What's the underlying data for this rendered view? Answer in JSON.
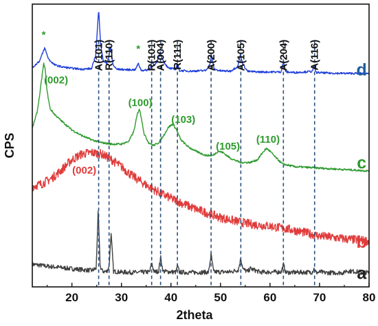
{
  "chart_data": {
    "type": "line",
    "title": "",
    "xlabel": "2theta",
    "ylabel": "CPS",
    "xlim": [
      12,
      80
    ],
    "ylim": [
      0,
      100
    ],
    "xticks": [
      20,
      30,
      40,
      50,
      60,
      70,
      80
    ],
    "grid": false,
    "legend": "none",
    "series": [
      {
        "name": "a",
        "color": "#404040",
        "noise": 0.8,
        "x": [
          12,
          15,
          18,
          20,
          22,
          24,
          24.9,
          25.3,
          25.7,
          26.2,
          27,
          27.5,
          27.9,
          28.4,
          30,
          33,
          35.7,
          36.1,
          36.6,
          37.5,
          37.9,
          38.4,
          41,
          41.3,
          41.7,
          44,
          47.6,
          48.1,
          48.6,
          52,
          53.6,
          54.1,
          54.6,
          55.5,
          56,
          58,
          62.3,
          62.7,
          63.2,
          68.5,
          68.9,
          69.3,
          70.3,
          70.8,
          75,
          75.3,
          80
        ],
        "y": [
          8,
          7.3,
          6.8,
          6.4,
          6.1,
          5.8,
          6.5,
          27,
          7.2,
          5.5,
          5.4,
          7,
          19,
          5.5,
          5.2,
          5.1,
          5.3,
          8.5,
          5.3,
          5.5,
          10.5,
          5.5,
          5.2,
          7.5,
          5.2,
          5.1,
          5.2,
          11.5,
          5.3,
          5.3,
          6,
          10,
          6.2,
          5.4,
          6.5,
          5.2,
          5.3,
          8,
          5.1,
          5.2,
          6.5,
          5,
          5.3,
          5,
          5,
          5.7,
          5
        ]
      },
      {
        "name": "b",
        "color": "#e03c3c",
        "noise": 1.6,
        "x": [
          12,
          14,
          16,
          18,
          20,
          22,
          24,
          26,
          28,
          30,
          32,
          35,
          38,
          41,
          45,
          50,
          55,
          57,
          60,
          65,
          70,
          75,
          80
        ],
        "y": [
          35.5,
          36.5,
          38.5,
          41.5,
          45,
          47,
          47.5,
          47,
          45,
          42.5,
          39.5,
          36,
          33,
          30.5,
          27.5,
          24.5,
          22.5,
          22,
          21.5,
          20,
          18,
          17,
          16.2
        ]
      },
      {
        "name": "c",
        "color": "#2e9a2e",
        "noise": 0.35,
        "x": [
          12,
          13,
          13.5,
          14,
          14.3,
          14.6,
          15,
          15.6,
          16.5,
          18,
          20,
          22,
          24,
          26,
          28,
          30,
          31.5,
          32.5,
          33.2,
          33.6,
          34,
          34.6,
          35.5,
          36.5,
          37.5,
          38.5,
          39.5,
          40.3,
          41,
          42,
          43.5,
          45,
          47,
          48.5,
          49.5,
          50.5,
          52,
          54,
          56,
          57.5,
          58.5,
          59.3,
          60,
          61,
          62.5,
          65,
          70,
          75,
          80
        ],
        "y": [
          56,
          62,
          68,
          75,
          79,
          77,
          69,
          63,
          61,
          58.5,
          55.5,
          53.5,
          52,
          51,
          50.5,
          50.5,
          51.5,
          55,
          61,
          63,
          60,
          54,
          51,
          50,
          51,
          53.5,
          56.5,
          57.5,
          56,
          52,
          49.5,
          48,
          46.5,
          46.5,
          48,
          47.5,
          45.5,
          44,
          44,
          45,
          47.5,
          49,
          48,
          46,
          43.5,
          42.5,
          42,
          41.5,
          41
        ]
      },
      {
        "name": "d",
        "color": "#1f3fd8",
        "noise": 0.35,
        "x": [
          12,
          13.5,
          14.5,
          15.3,
          16.5,
          18,
          20,
          22,
          24,
          24.8,
          25.4,
          25.8,
          26.3,
          27,
          27.4,
          27.8,
          28.3,
          29,
          31,
          32.8,
          33.4,
          34,
          35,
          35.8,
          36.2,
          36.6,
          37.2,
          37.8,
          38.4,
          39.5,
          41,
          41.3,
          41.7,
          44,
          47,
          47.8,
          48.2,
          48.7,
          50,
          52,
          53.5,
          54,
          54.6,
          55.5,
          58,
          62.2,
          62.7,
          63.2,
          65,
          68.5,
          68.9,
          69.3,
          72,
          75,
          78,
          80
        ],
        "y": [
          77.5,
          80,
          84.5,
          80.5,
          78.5,
          77.8,
          77.3,
          77,
          77.2,
          82,
          98,
          86,
          80,
          79,
          81,
          85,
          78.5,
          77,
          76.8,
          76.8,
          79,
          76.6,
          76.6,
          77.2,
          80,
          78,
          79.5,
          83,
          80,
          77.3,
          77,
          79.2,
          76.5,
          76.3,
          76.5,
          78.5,
          82,
          77,
          76.4,
          76.3,
          78,
          82,
          78.5,
          76.2,
          76,
          76,
          79.5,
          76,
          75.8,
          76.2,
          78,
          75.8,
          75.6,
          75.5,
          75.5,
          75.5
        ]
      }
    ],
    "series_labels": [
      {
        "text": "a",
        "x": 78.5,
        "y": 5,
        "color": "#222222"
      },
      {
        "text": "b",
        "x": 78.5,
        "y": 16,
        "color": "#e03c3c"
      },
      {
        "text": "c",
        "x": 78.5,
        "y": 44,
        "color": "#2e9a2e"
      },
      {
        "text": "d",
        "x": 78.5,
        "y": 77,
        "color": "#1f5fa0"
      }
    ],
    "reference_lines": [
      25.4,
      27.5,
      36.1,
      37.9,
      41.3,
      48.1,
      54.1,
      62.7,
      69.0
    ],
    "peak_labels": [
      {
        "text": "A(101)",
        "x": 25.4
      },
      {
        "text": "R(110)",
        "x": 27.5
      },
      {
        "text": "R(101)",
        "x": 36.1
      },
      {
        "text": "A(004)",
        "x": 37.9
      },
      {
        "text": "R(111)",
        "x": 41.3
      },
      {
        "text": "A(200)",
        "x": 48.1
      },
      {
        "text": "A(105)",
        "x": 54.1
      },
      {
        "text": "A(204)",
        "x": 62.7
      },
      {
        "text": "A(116)",
        "x": 69.0
      }
    ],
    "annotations": [
      {
        "text": "*",
        "x": 14.3,
        "y": 88,
        "color": "#2e9a2e"
      },
      {
        "text": "*",
        "x": 33.4,
        "y": 83,
        "color": "#2e9a2e"
      },
      {
        "text": "(002)",
        "x": 16.8,
        "y": 72,
        "color": "#2e9a2e"
      },
      {
        "text": "(100)",
        "x": 33.8,
        "y": 64,
        "color": "#2e9a2e"
      },
      {
        "text": "(103)",
        "x": 42.5,
        "y": 58,
        "color": "#2e9a2e"
      },
      {
        "text": "(105)",
        "x": 51.5,
        "y": 48.5,
        "color": "#2e9a2e"
      },
      {
        "text": "(110)",
        "x": 59.6,
        "y": 51,
        "color": "#2e9a2e"
      },
      {
        "text": "(002)",
        "x": 22.5,
        "y": 40,
        "color": "#e03c3c"
      }
    ]
  }
}
